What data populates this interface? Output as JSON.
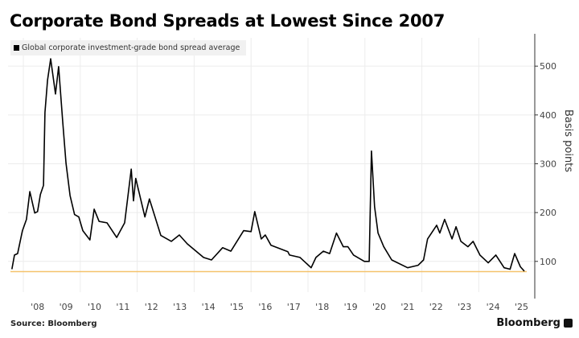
{
  "title": "Corporate Bond Spreads at Lowest Since 2007",
  "source": "Source: Bloomberg",
  "brand": "Bloomberg",
  "chart_data": {
    "type": "line",
    "title": "Corporate Bond Spreads at Lowest Since 2007",
    "ylabel": "Basis points",
    "xlabel": "",
    "ylim": [
      37,
      558
    ],
    "xlim": [
      2007.55,
      2025.75
    ],
    "y_ticks": [
      100,
      200,
      300,
      400,
      500
    ],
    "y_axis_side": "right",
    "x_tick_labels": [
      "'08",
      "'09",
      "'10",
      "'11",
      "'12",
      "'13",
      "'14",
      "'15",
      "'16",
      "'17",
      "'18",
      "'19",
      "'20",
      "'21",
      "'22",
      "'23",
      "'24",
      "'25"
    ],
    "x_tick_years": [
      2008,
      2009,
      2010,
      2011,
      2012,
      2013,
      2014,
      2015,
      2016,
      2017,
      2018,
      2019,
      2020,
      2021,
      2022,
      2023,
      2024,
      2025
    ],
    "grid": true,
    "legend_position": "top-left",
    "reference_line": {
      "value": 79,
      "color": "#f5c26b"
    },
    "series": [
      {
        "name": "Global corporate investment-grade bond spread average",
        "color": "#000000",
        "x": [
          2007.6,
          2007.69,
          2007.8,
          2007.97,
          2008.11,
          2008.23,
          2008.4,
          2008.5,
          2008.6,
          2008.71,
          2008.76,
          2008.85,
          2008.96,
          2009.13,
          2009.24,
          2009.38,
          2009.5,
          2009.64,
          2009.8,
          2009.95,
          2010.09,
          2010.34,
          2010.49,
          2010.66,
          2010.94,
          2011.28,
          2011.56,
          2011.79,
          2011.87,
          2011.95,
          2012.27,
          2012.43,
          2012.83,
          2013.2,
          2013.48,
          2013.76,
          2014.33,
          2014.61,
          2015.0,
          2015.29,
          2015.74,
          2016.0,
          2016.13,
          2016.36,
          2016.5,
          2016.7,
          2017.29,
          2017.35,
          2017.72,
          2018.11,
          2018.28,
          2018.54,
          2018.76,
          2019.0,
          2019.24,
          2019.4,
          2019.6,
          2019.98,
          2020.15,
          2020.23,
          2020.34,
          2020.46,
          2020.66,
          2020.94,
          2021.5,
          2021.87,
          2022.06,
          2022.2,
          2022.52,
          2022.63,
          2022.8,
          2023.06,
          2023.2,
          2023.37,
          2023.62,
          2023.8,
          2024.04,
          2024.33,
          2024.6,
          2024.89,
          2025.1,
          2025.26,
          2025.46,
          2025.6
        ],
        "y": [
          84,
          113,
          116,
          163,
          186,
          243,
          199,
          202,
          237,
          256,
          405,
          471,
          515,
          443,
          499,
          388,
          301,
          235,
          196,
          191,
          163,
          144,
          207,
          182,
          179,
          149,
          179,
          289,
          224,
          270,
          191,
          228,
          153,
          141,
          154,
          136,
          108,
          103,
          128,
          121,
          163,
          161,
          202,
          146,
          154,
          133,
          120,
          113,
          108,
          87,
          108,
          121,
          116,
          158,
          130,
          130,
          113,
          100,
          100,
          326,
          212,
          158,
          130,
          103,
          87,
          92,
          103,
          146,
          174,
          158,
          186,
          146,
          171,
          141,
          130,
          141,
          113,
          97,
          113,
          87,
          84,
          116,
          89,
          80
        ]
      }
    ]
  }
}
